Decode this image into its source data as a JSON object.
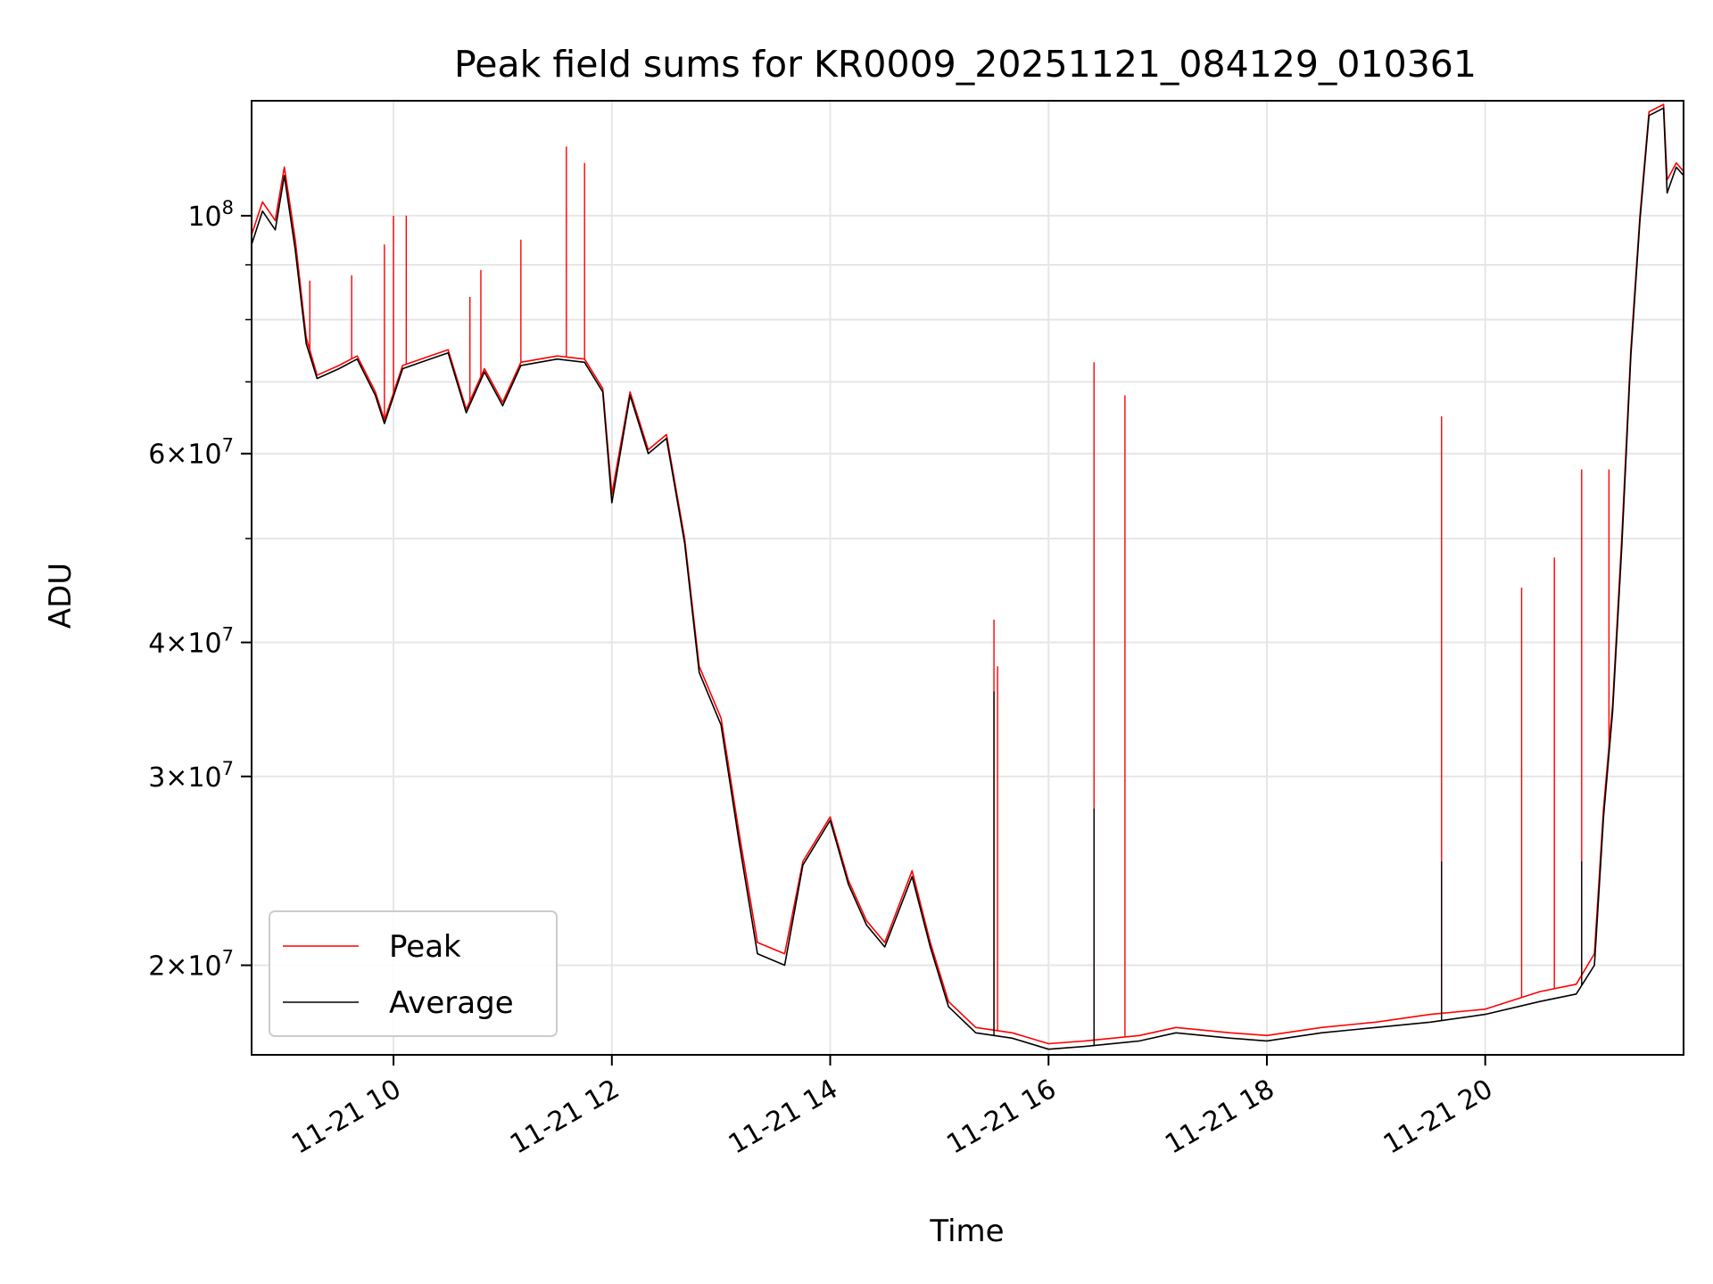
{
  "chart_data": {
    "type": "line",
    "title": "Peak field sums for KR0009_20251121_084129_010361",
    "xlabel": "Time",
    "ylabel": "ADU",
    "xlim": [
      "11-21 08:42",
      "11-21 21:49"
    ],
    "ylim": [
      16500000,
      128000000
    ],
    "yscale": "log",
    "grid": true,
    "legend_position": "lower-left",
    "x_ticks": [
      "11-21 10",
      "11-21 12",
      "11-21 14",
      "11-21 16",
      "11-21 18",
      "11-21 20"
    ],
    "y_ticks": [
      {
        "value": 20000000,
        "mantissa": "2",
        "exp": "7",
        "times": true
      },
      {
        "value": 30000000,
        "mantissa": "3",
        "exp": "7",
        "times": true
      },
      {
        "value": 40000000,
        "mantissa": "4",
        "exp": "7",
        "times": true
      },
      {
        "value": 60000000,
        "mantissa": "6",
        "exp": "7",
        "times": true
      },
      {
        "value": 100000000,
        "mantissa": "",
        "exp": "8",
        "times": false
      }
    ],
    "minor_y_gridlines": [
      50000000,
      70000000,
      80000000,
      90000000
    ],
    "series": [
      {
        "name": "Peak",
        "color": "#ff0000",
        "points": [
          [
            "11-21 08:42",
            96000000
          ],
          [
            "11-21 08:48",
            103000000
          ],
          [
            "11-21 08:55",
            99000000
          ],
          [
            "11-21 09:00",
            111000000
          ],
          [
            "11-21 09:06",
            95000000
          ],
          [
            "11-21 09:12",
            77000000
          ],
          [
            "11-21 09:18",
            71000000
          ],
          [
            "11-21 09:30",
            72500000
          ],
          [
            "11-21 09:40",
            74000000
          ],
          [
            "11-21 09:50",
            68500000
          ],
          [
            "11-21 09:55",
            64500000
          ],
          [
            "11-21 10:05",
            72500000
          ],
          [
            "11-21 10:20",
            74000000
          ],
          [
            "11-21 10:30",
            75000000
          ],
          [
            "11-21 10:40",
            66000000
          ],
          [
            "11-21 10:50",
            72000000
          ],
          [
            "11-21 11:00",
            67000000
          ],
          [
            "11-21 11:10",
            73000000
          ],
          [
            "11-21 11:30",
            74000000
          ],
          [
            "11-21 11:45",
            73500000
          ],
          [
            "11-21 11:55",
            69000000
          ],
          [
            "11-21 12:00",
            55000000
          ],
          [
            "11-21 12:10",
            68500000
          ],
          [
            "11-21 12:20",
            60500000
          ],
          [
            "11-21 12:30",
            62500000
          ],
          [
            "11-21 12:40",
            50000000
          ],
          [
            "11-21 12:48",
            38000000
          ],
          [
            "11-21 13:00",
            34000000
          ],
          [
            "11-21 13:10",
            26500000
          ],
          [
            "11-21 13:20",
            21000000
          ],
          [
            "11-21 13:35",
            20500000
          ],
          [
            "11-21 13:45",
            25000000
          ],
          [
            "11-21 14:00",
            27500000
          ],
          [
            "11-21 14:10",
            24000000
          ],
          [
            "11-21 14:20",
            22000000
          ],
          [
            "11-21 14:30",
            21000000
          ],
          [
            "11-21 14:45",
            24500000
          ],
          [
            "11-21 14:55",
            21000000
          ],
          [
            "11-21 15:05",
            18500000
          ],
          [
            "11-21 15:20",
            17500000
          ],
          [
            "11-21 15:40",
            17300000
          ],
          [
            "11-21 16:00",
            16900000
          ],
          [
            "11-21 16:20",
            17000000
          ],
          [
            "11-21 16:50",
            17200000
          ],
          [
            "11-21 17:10",
            17500000
          ],
          [
            "11-21 17:40",
            17300000
          ],
          [
            "11-21 18:00",
            17200000
          ],
          [
            "11-21 18:30",
            17500000
          ],
          [
            "11-21 19:00",
            17700000
          ],
          [
            "11-21 19:30",
            18000000
          ],
          [
            "11-21 20:00",
            18200000
          ],
          [
            "11-21 20:30",
            18900000
          ],
          [
            "11-21 20:50",
            19200000
          ],
          [
            "11-21 21:00",
            20500000
          ],
          [
            "11-21 21:05",
            28000000
          ],
          [
            "11-21 21:10",
            35000000
          ],
          [
            "11-21 21:15",
            50000000
          ],
          [
            "11-21 21:20",
            75000000
          ],
          [
            "11-21 21:25",
            100000000
          ],
          [
            "11-21 21:30",
            125000000
          ],
          [
            "11-21 21:38",
            127000000
          ],
          [
            "11-21 21:40",
            108000000
          ],
          [
            "11-21 21:45",
            112000000
          ],
          [
            "11-21 21:49",
            110000000
          ]
        ],
        "spikes": [
          [
            "11-21 09:14",
            87000000
          ],
          [
            "11-21 09:37",
            88000000
          ],
          [
            "11-21 09:55",
            94000000
          ],
          [
            "11-21 10:00",
            100000000
          ],
          [
            "11-21 10:07",
            100000000
          ],
          [
            "11-21 10:42",
            84000000
          ],
          [
            "11-21 10:48",
            89000000
          ],
          [
            "11-21 11:10",
            95000000
          ],
          [
            "11-21 11:35",
            116000000
          ],
          [
            "11-21 11:45",
            112000000
          ],
          [
            "11-21 15:30",
            42000000
          ],
          [
            "11-21 15:32",
            38000000
          ],
          [
            "11-21 16:25",
            73000000
          ],
          [
            "11-21 16:42",
            68000000
          ],
          [
            "11-21 19:36",
            65000000
          ],
          [
            "11-21 20:20",
            45000000
          ],
          [
            "11-21 20:38",
            48000000
          ],
          [
            "11-21 20:53",
            58000000
          ],
          [
            "11-21 21:08",
            58000000
          ]
        ]
      },
      {
        "name": "Average",
        "color": "#000000",
        "points": [
          [
            "11-21 08:42",
            94000000
          ],
          [
            "11-21 08:48",
            101000000
          ],
          [
            "11-21 08:55",
            97000000
          ],
          [
            "11-21 09:00",
            109000000
          ],
          [
            "11-21 09:06",
            93000000
          ],
          [
            "11-21 09:12",
            76000000
          ],
          [
            "11-21 09:18",
            70500000
          ],
          [
            "11-21 09:30",
            72000000
          ],
          [
            "11-21 09:40",
            73500000
          ],
          [
            "11-21 09:50",
            68000000
          ],
          [
            "11-21 09:55",
            64000000
          ],
          [
            "11-21 10:05",
            72000000
          ],
          [
            "11-21 10:20",
            73500000
          ],
          [
            "11-21 10:30",
            74500000
          ],
          [
            "11-21 10:40",
            65500000
          ],
          [
            "11-21 10:50",
            71500000
          ],
          [
            "11-21 11:00",
            66500000
          ],
          [
            "11-21 11:10",
            72500000
          ],
          [
            "11-21 11:30",
            73500000
          ],
          [
            "11-21 11:45",
            73000000
          ],
          [
            "11-21 11:55",
            68500000
          ],
          [
            "11-21 12:00",
            54000000
          ],
          [
            "11-21 12:10",
            68000000
          ],
          [
            "11-21 12:20",
            60000000
          ],
          [
            "11-21 12:30",
            62000000
          ],
          [
            "11-21 12:40",
            49500000
          ],
          [
            "11-21 12:48",
            37500000
          ],
          [
            "11-21 13:00",
            33500000
          ],
          [
            "11-21 13:10",
            26000000
          ],
          [
            "11-21 13:20",
            20500000
          ],
          [
            "11-21 13:35",
            20000000
          ],
          [
            "11-21 13:45",
            24800000
          ],
          [
            "11-21 14:00",
            27300000
          ],
          [
            "11-21 14:10",
            23800000
          ],
          [
            "11-21 14:20",
            21800000
          ],
          [
            "11-21 14:30",
            20800000
          ],
          [
            "11-21 14:45",
            24200000
          ],
          [
            "11-21 14:55",
            20800000
          ],
          [
            "11-21 15:05",
            18300000
          ],
          [
            "11-21 15:20",
            17300000
          ],
          [
            "11-21 15:40",
            17100000
          ],
          [
            "11-21 16:00",
            16700000
          ],
          [
            "11-21 16:20",
            16800000
          ],
          [
            "11-21 16:50",
            17000000
          ],
          [
            "11-21 17:10",
            17300000
          ],
          [
            "11-21 17:40",
            17100000
          ],
          [
            "11-21 18:00",
            17000000
          ],
          [
            "11-21 18:30",
            17300000
          ],
          [
            "11-21 19:00",
            17500000
          ],
          [
            "11-21 19:30",
            17700000
          ],
          [
            "11-21 20:00",
            18000000
          ],
          [
            "11-21 20:30",
            18500000
          ],
          [
            "11-21 20:50",
            18800000
          ],
          [
            "11-21 21:00",
            20000000
          ],
          [
            "11-21 21:05",
            27500000
          ],
          [
            "11-21 21:10",
            34500000
          ],
          [
            "11-21 21:15",
            49000000
          ],
          [
            "11-21 21:20",
            74000000
          ],
          [
            "11-21 21:25",
            99000000
          ],
          [
            "11-21 21:30",
            124000000
          ],
          [
            "11-21 21:38",
            126000000
          ],
          [
            "11-21 21:40",
            105000000
          ],
          [
            "11-21 21:45",
            111000000
          ],
          [
            "11-21 21:49",
            109000000
          ]
        ],
        "spikes": [
          [
            "11-21 15:30",
            36000000
          ],
          [
            "11-21 16:25",
            28000000
          ],
          [
            "11-21 19:36",
            25000000
          ],
          [
            "11-21 20:53",
            25000000
          ]
        ]
      }
    ]
  }
}
